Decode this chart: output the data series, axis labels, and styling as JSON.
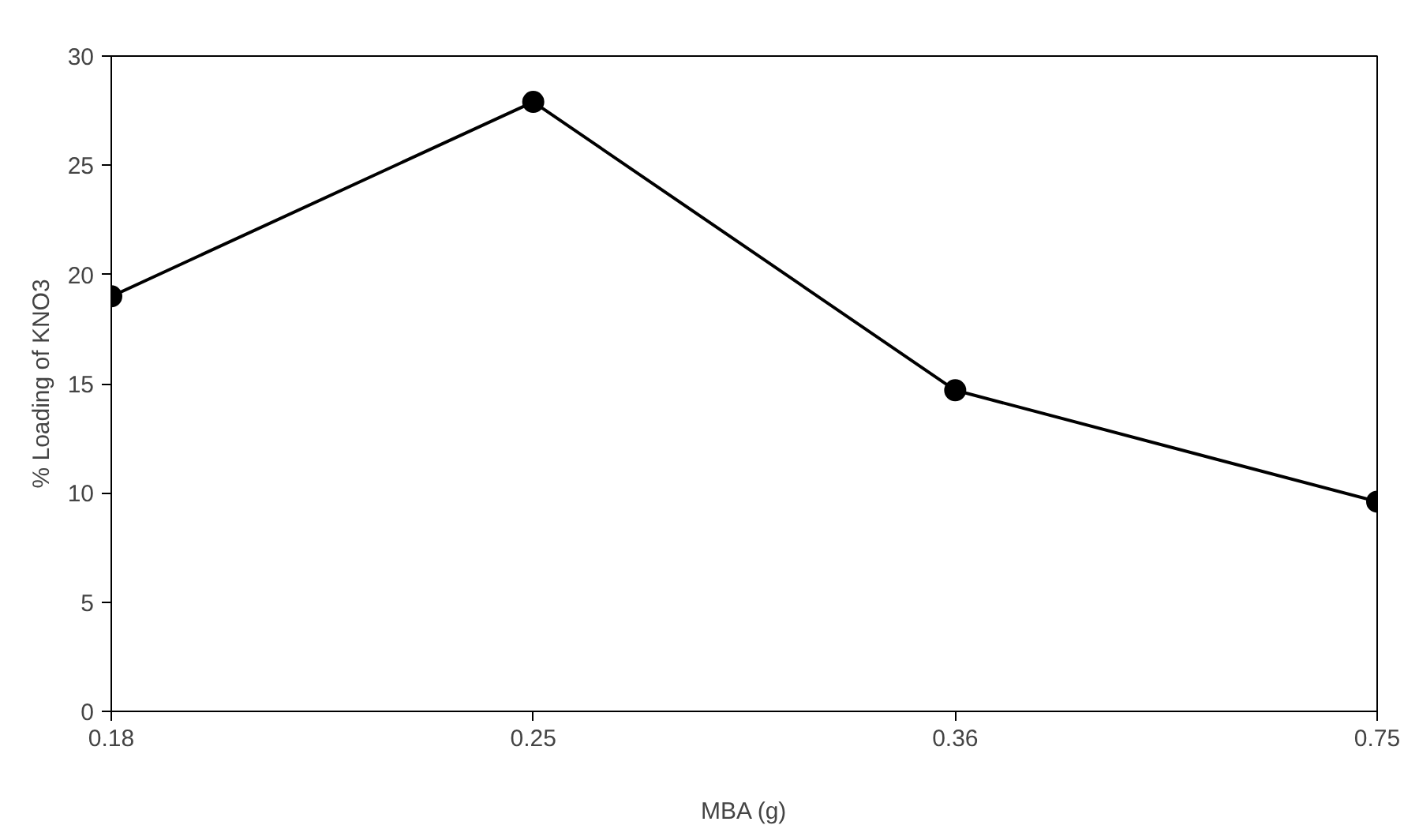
{
  "chart_data": {
    "type": "line",
    "xlabel": "MBA (g)",
    "ylabel": "% Loading of KNO3",
    "categories": [
      "0.18",
      "0.25",
      "0.36",
      "0.75"
    ],
    "series": [
      {
        "color": "#000000",
        "values": [
          19,
          27.9,
          14.7,
          9.6
        ]
      }
    ],
    "ylim": [
      0,
      30
    ],
    "yticks": [
      0,
      5,
      10,
      15,
      20,
      25,
      30
    ],
    "grid": false,
    "marker": "circle",
    "line_style": "solid"
  }
}
